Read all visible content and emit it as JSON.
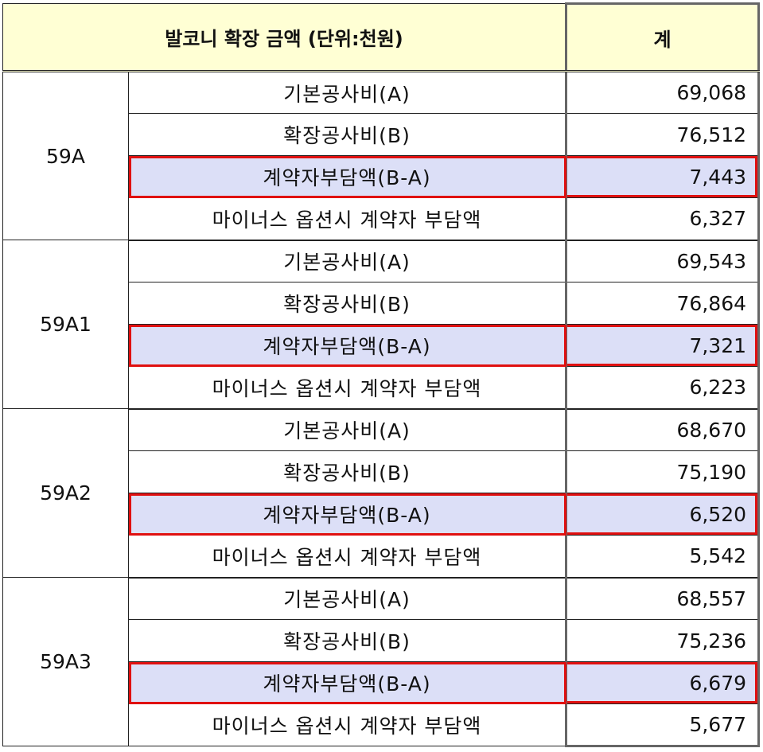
{
  "header": {
    "title": "발코니 확장 금액 (단위:천원)",
    "total": "계"
  },
  "groups": [
    {
      "name": "59A",
      "rows": [
        {
          "label": "기본공사비(A)",
          "value": "69,068"
        },
        {
          "label": "확장공사비(B)",
          "value": "76,512"
        },
        {
          "label": "계약자부담액(B-A)",
          "value": "7,443"
        },
        {
          "label": "마이너스 옵션시 계약자 부담액",
          "value": "6,327"
        }
      ]
    },
    {
      "name": "59A1",
      "rows": [
        {
          "label": "기본공사비(A)",
          "value": "69,543"
        },
        {
          "label": "확장공사비(B)",
          "value": "76,864"
        },
        {
          "label": "계약자부담액(B-A)",
          "value": "7,321"
        },
        {
          "label": "마이너스 옵션시 계약자 부담액",
          "value": "6,223"
        }
      ]
    },
    {
      "name": "59A2",
      "rows": [
        {
          "label": "기본공사비(A)",
          "value": "68,670"
        },
        {
          "label": "확장공사비(B)",
          "value": "75,190"
        },
        {
          "label": "계약자부담액(B-A)",
          "value": "6,520"
        },
        {
          "label": "마이너스 옵션시 계약자 부담액",
          "value": "5,542"
        }
      ]
    },
    {
      "name": "59A3",
      "rows": [
        {
          "label": "기본공사비(A)",
          "value": "68,557"
        },
        {
          "label": "확장공사비(B)",
          "value": "75,236"
        },
        {
          "label": "계약자부담액(B-A)",
          "value": "6,679"
        },
        {
          "label": "마이너스 옵션시 계약자 부담액",
          "value": "5,677"
        }
      ]
    }
  ],
  "colors": {
    "header_bg": "#ffffd4",
    "highlight_bg": "#dcdff7",
    "highlight_border": "#e01010"
  }
}
